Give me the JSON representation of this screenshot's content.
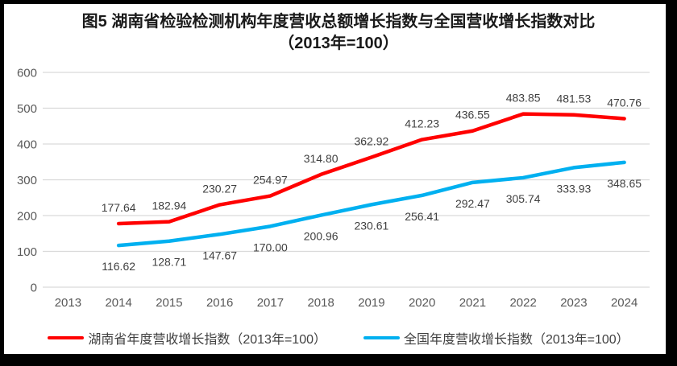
{
  "title": {
    "line1": "图5 湖南省检验检测机构年度营收总额增长指数与全国营收增长指数对比",
    "line2": "（2013年=100）"
  },
  "chart_data": {
    "type": "line",
    "title": "图5 湖南省检验检测机构年度营收总额增长指数与全国营收增长指数对比（2013年=100）",
    "categories": [
      "2013",
      "2014",
      "2015",
      "2016",
      "2017",
      "2018",
      "2019",
      "2020",
      "2021",
      "2022",
      "2023",
      "2024"
    ],
    "series": [
      {
        "name": "湖南省年度营收增长指数（2013年=100）",
        "color": "#FF0000",
        "values": [
          null,
          177.64,
          182.94,
          230.27,
          254.97,
          314.8,
          362.92,
          412.23,
          436.55,
          483.85,
          481.53,
          470.76
        ],
        "labels": [
          "",
          "177.64",
          "182.94",
          "230.27",
          "254.97",
          "314.80",
          "362.92",
          "412.23",
          "436.55",
          "483.85",
          "481.53",
          "470.76"
        ],
        "label_position": "above"
      },
      {
        "name": "全国年度营收增长指数（2013年=100）",
        "color": "#00B0F0",
        "values": [
          null,
          116.62,
          128.71,
          147.67,
          170.0,
          200.96,
          230.61,
          256.41,
          292.47,
          305.74,
          333.93,
          348.65
        ],
        "labels": [
          "",
          "116.62",
          "128.71",
          "147.67",
          "170.00",
          "200.96",
          "230.61",
          "256.41",
          "292.47",
          "305.74",
          "333.93",
          "348.65"
        ],
        "label_position": "below"
      }
    ],
    "xlabel": "",
    "ylabel": "",
    "ylim": [
      0,
      600
    ],
    "y_tick_step": 100,
    "y_ticks": [
      "0",
      "100",
      "200",
      "300",
      "400",
      "500",
      "600"
    ],
    "grid": true,
    "legend_position": "bottom",
    "styles": {
      "gridline_color": "#D9D9D9",
      "axis_tick_color": "#595959",
      "data_label_color": "#404040",
      "background": "#FFFFFF",
      "frame_border_color": "#000000"
    }
  }
}
